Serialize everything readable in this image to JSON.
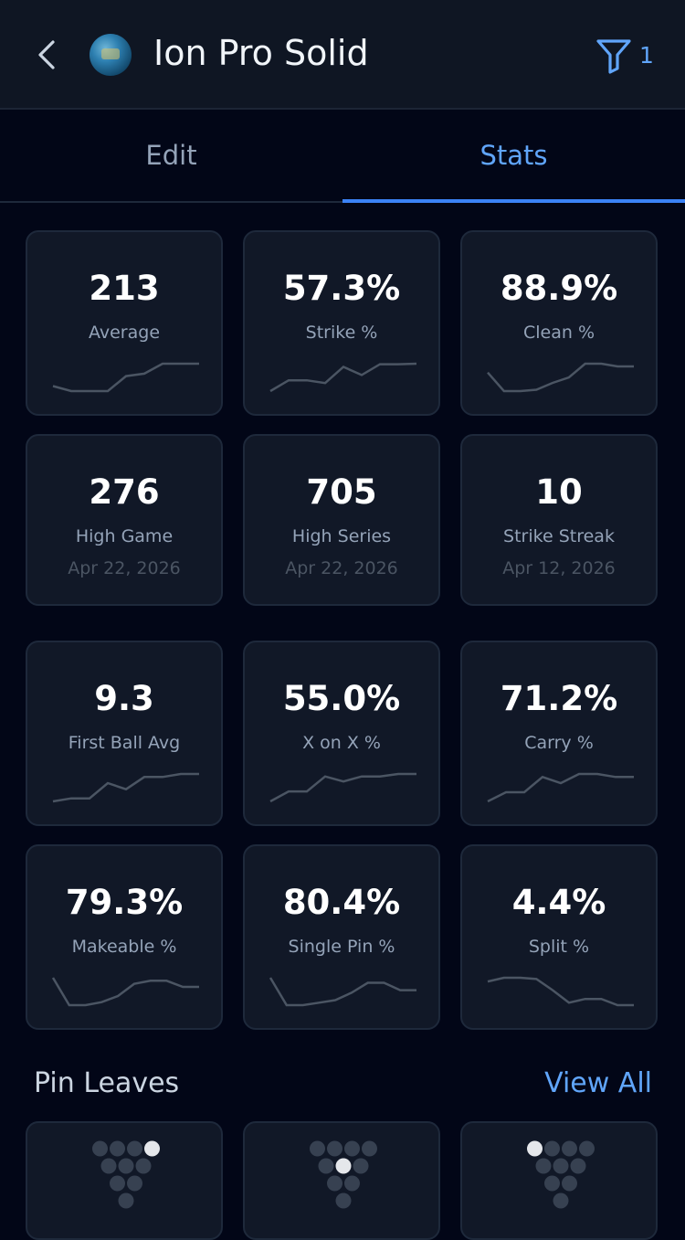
{
  "header": {
    "title": "Ion Pro Solid",
    "filter_count": "1"
  },
  "tabs": [
    {
      "label": "Edit",
      "active": false
    },
    {
      "label": "Stats",
      "active": true
    }
  ],
  "stats_top": [
    {
      "value": "213",
      "label": "Average",
      "trend": [
        213,
        211,
        211,
        211,
        217,
        218,
        222,
        222,
        222
      ]
    },
    {
      "value": "57.3%",
      "label": "Strike %",
      "trend": [
        44,
        48,
        48,
        47,
        53,
        50,
        54,
        54,
        54.2
      ]
    },
    {
      "value": "88.9%",
      "label": "Clean %",
      "trend": [
        88.7,
        86,
        86,
        86.2,
        87.2,
        88,
        90,
        90,
        89.6,
        89.6
      ]
    },
    {
      "value": "276",
      "label": "High Game",
      "date": "Apr 22, 2026"
    },
    {
      "value": "705",
      "label": "High Series",
      "date": "Apr 22, 2026"
    },
    {
      "value": "10",
      "label": "Strike Streak",
      "date": "Apr 12, 2026"
    }
  ],
  "stats_bottom": [
    {
      "value": "9.3",
      "label": "First Ball Avg",
      "trend": [
        8.9,
        8.95,
        8.95,
        9.2,
        9.1,
        9.3,
        9.3,
        9.35,
        9.35
      ]
    },
    {
      "value": "55.0%",
      "label": "X on X %",
      "trend": [
        44,
        48,
        48,
        54,
        52,
        54,
        54,
        55,
        55
      ]
    },
    {
      "value": "71.2%",
      "label": "Carry %",
      "trend": [
        62,
        65,
        65,
        70,
        68,
        71,
        71,
        70,
        70
      ]
    },
    {
      "value": "79.3%",
      "label": "Makeable %",
      "trend": [
        81,
        72,
        72,
        73,
        75,
        79,
        80,
        80,
        78,
        78
      ]
    },
    {
      "value": "80.4%",
      "label": "Single Pin %",
      "trend": [
        84,
        73,
        73,
        74,
        75,
        78,
        82,
        82,
        79,
        79
      ]
    },
    {
      "value": "4.4%",
      "label": "Split %",
      "trend": [
        6.4,
        7,
        7,
        6.8,
        5,
        3,
        3.6,
        3.6,
        2.6,
        2.6
      ]
    }
  ],
  "pin_leaves": {
    "title": "Pin Leaves",
    "view_all": "View All",
    "cards": [
      {
        "standing_pins": [
          10
        ]
      },
      {
        "standing_pins": [
          5
        ]
      },
      {
        "standing_pins": [
          7
        ]
      }
    ]
  },
  "colors": {
    "accent": "#60a5fa",
    "tab_underline": "#3b82f6",
    "card_bg": "#111827",
    "sparkline": "#4b5563",
    "pin_down": "#374151",
    "pin_standing": "#e5e7eb"
  }
}
